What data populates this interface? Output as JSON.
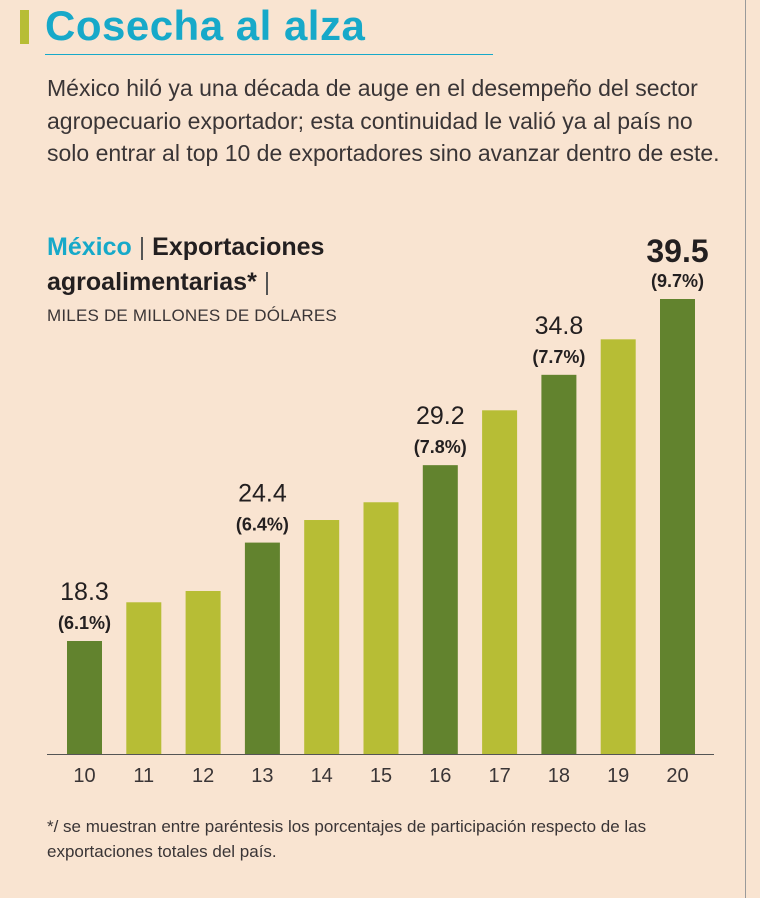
{
  "header": {
    "title": "Cosecha al alza",
    "intro": "México hiló ya una década de auge en el desempeño del sector agropecuario exportador; esta continuidad le valió ya al país no solo entrar al top 10 de exportadores sino avanzar dentro de este."
  },
  "chart_data": {
    "type": "bar",
    "title_country": "México",
    "title": "Exportaciones agroalimentarias*",
    "ylabel": "MILES DE MILLONES DE DÓLARES",
    "categories": [
      "10",
      "11",
      "12",
      "13",
      "14",
      "15",
      "16",
      "17",
      "18",
      "19",
      "20"
    ],
    "values": [
      18.3,
      20.7,
      21.4,
      24.4,
      25.8,
      26.9,
      29.2,
      32.6,
      34.8,
      37.0,
      39.5
    ],
    "labels": [
      {
        "index": 0,
        "value": "18.3",
        "share": "(6.1%)"
      },
      {
        "index": 3,
        "value": "24.4",
        "share": "(6.4%)"
      },
      {
        "index": 6,
        "value": "29.2",
        "share": "(7.8%)"
      },
      {
        "index": 8,
        "value": "34.8",
        "share": "(7.7%)"
      },
      {
        "index": 10,
        "value": "39.5",
        "share": "(9.7%)"
      }
    ],
    "colors": {
      "highlight": "#62832e",
      "regular": "#b7bd35"
    },
    "grid": false,
    "legend": "none"
  },
  "footnote": "*/ se muestran entre paréntesis los porcentajes de participación respecto de las exportaciones totales del país."
}
